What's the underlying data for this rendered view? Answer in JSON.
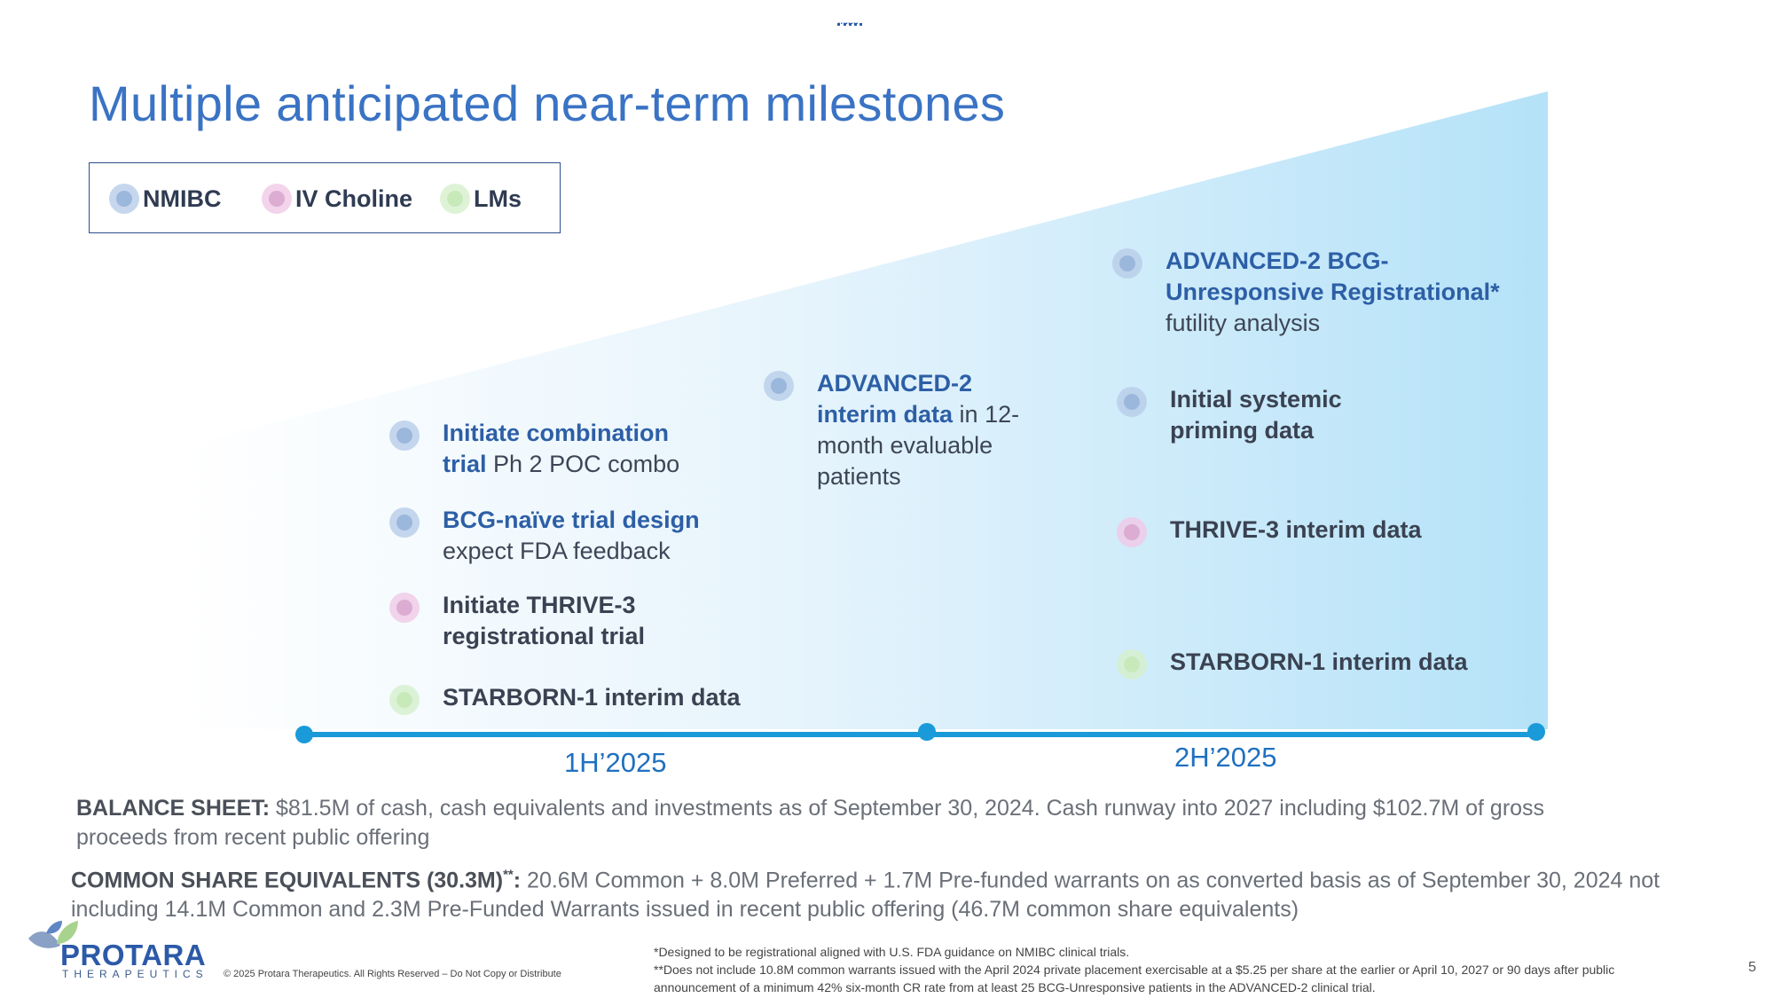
{
  "header": {
    "ellipsis": "........",
    "title": "Multiple anticipated near-term milestones"
  },
  "legend": [
    {
      "label": "NMIBC",
      "color": "#2a5ea8"
    },
    {
      "label": "IV Choline",
      "color": "#8e3b82"
    },
    {
      "label": "LMs",
      "color": "#8fd079"
    }
  ],
  "timeline": {
    "periods": [
      "1H’2025",
      "2H’2025"
    ]
  },
  "milestones": {
    "h1_left": [
      {
        "category": "NMIBC",
        "bold": "Initiate combination trial",
        "rest": " Ph 2 POC combo"
      },
      {
        "category": "NMIBC",
        "bold": "BCG-naïve trial design",
        "rest": "expect FDA feedback"
      },
      {
        "category": "IV Choline",
        "bold": "Initiate THRIVE-3 registrational trial",
        "rest": ""
      },
      {
        "category": "LMs",
        "bold": "STARBORN-1 interim data",
        "rest": ""
      }
    ],
    "h1_right": [
      {
        "category": "NMIBC",
        "bold": "ADVANCED-2 interim data",
        "rest": " in 12-month evaluable patients"
      }
    ],
    "h2": [
      {
        "category": "NMIBC",
        "bold": "ADVANCED-2 BCG-Unresponsive Registrational*",
        "rest": "futility analysis"
      },
      {
        "category": "NMIBC",
        "bold": "Initial systemic priming data",
        "rest": ""
      },
      {
        "category": "IV Choline",
        "bold": "THRIVE-3 interim data",
        "rest": ""
      },
      {
        "category": "LMs",
        "bold": "STARBORN-1 interim data",
        "rest": ""
      }
    ]
  },
  "balance_sheet": {
    "label": "BALANCE SHEET:",
    "text": " $81.5M of cash, cash equivalents and investments as of September 30, 2024. Cash runway into 2027 including $102.7M of gross proceeds from recent public offering"
  },
  "common_share": {
    "label": "COMMON SHARE EQUIVALENTS (30.3M)",
    "sup": "**",
    "colon": ":",
    "text": " 20.6M Common + 8.0M Preferred + 1.7M Pre-funded warrants on as converted basis as of September 30, 2024 not including 14.1M Common and 2.3M Pre-Funded Warrants issued in recent public offering (46.7M common share equivalents)"
  },
  "footer": {
    "logo_word": "PROTARA",
    "logo_sub": "THERAPEUTICS",
    "copyright": "© 2025 Protara Therapeutics. All Rights Reserved – Do Not Copy or Distribute",
    "note1": "*Designed to be registrational aligned with U.S. FDA guidance on NMIBC clinical trials.",
    "note2": "**Does not include 10.8M common warrants issued with the April 2024 private placement exercisable at a $5.25 per share at the earlier or April 10, 2027 or 90 days after public announcement of a minimum 42% six-month CR rate from at least 25 BCG-Unresponsive patients in the ADVANCED-2 clinical trial.",
    "page": "5"
  }
}
